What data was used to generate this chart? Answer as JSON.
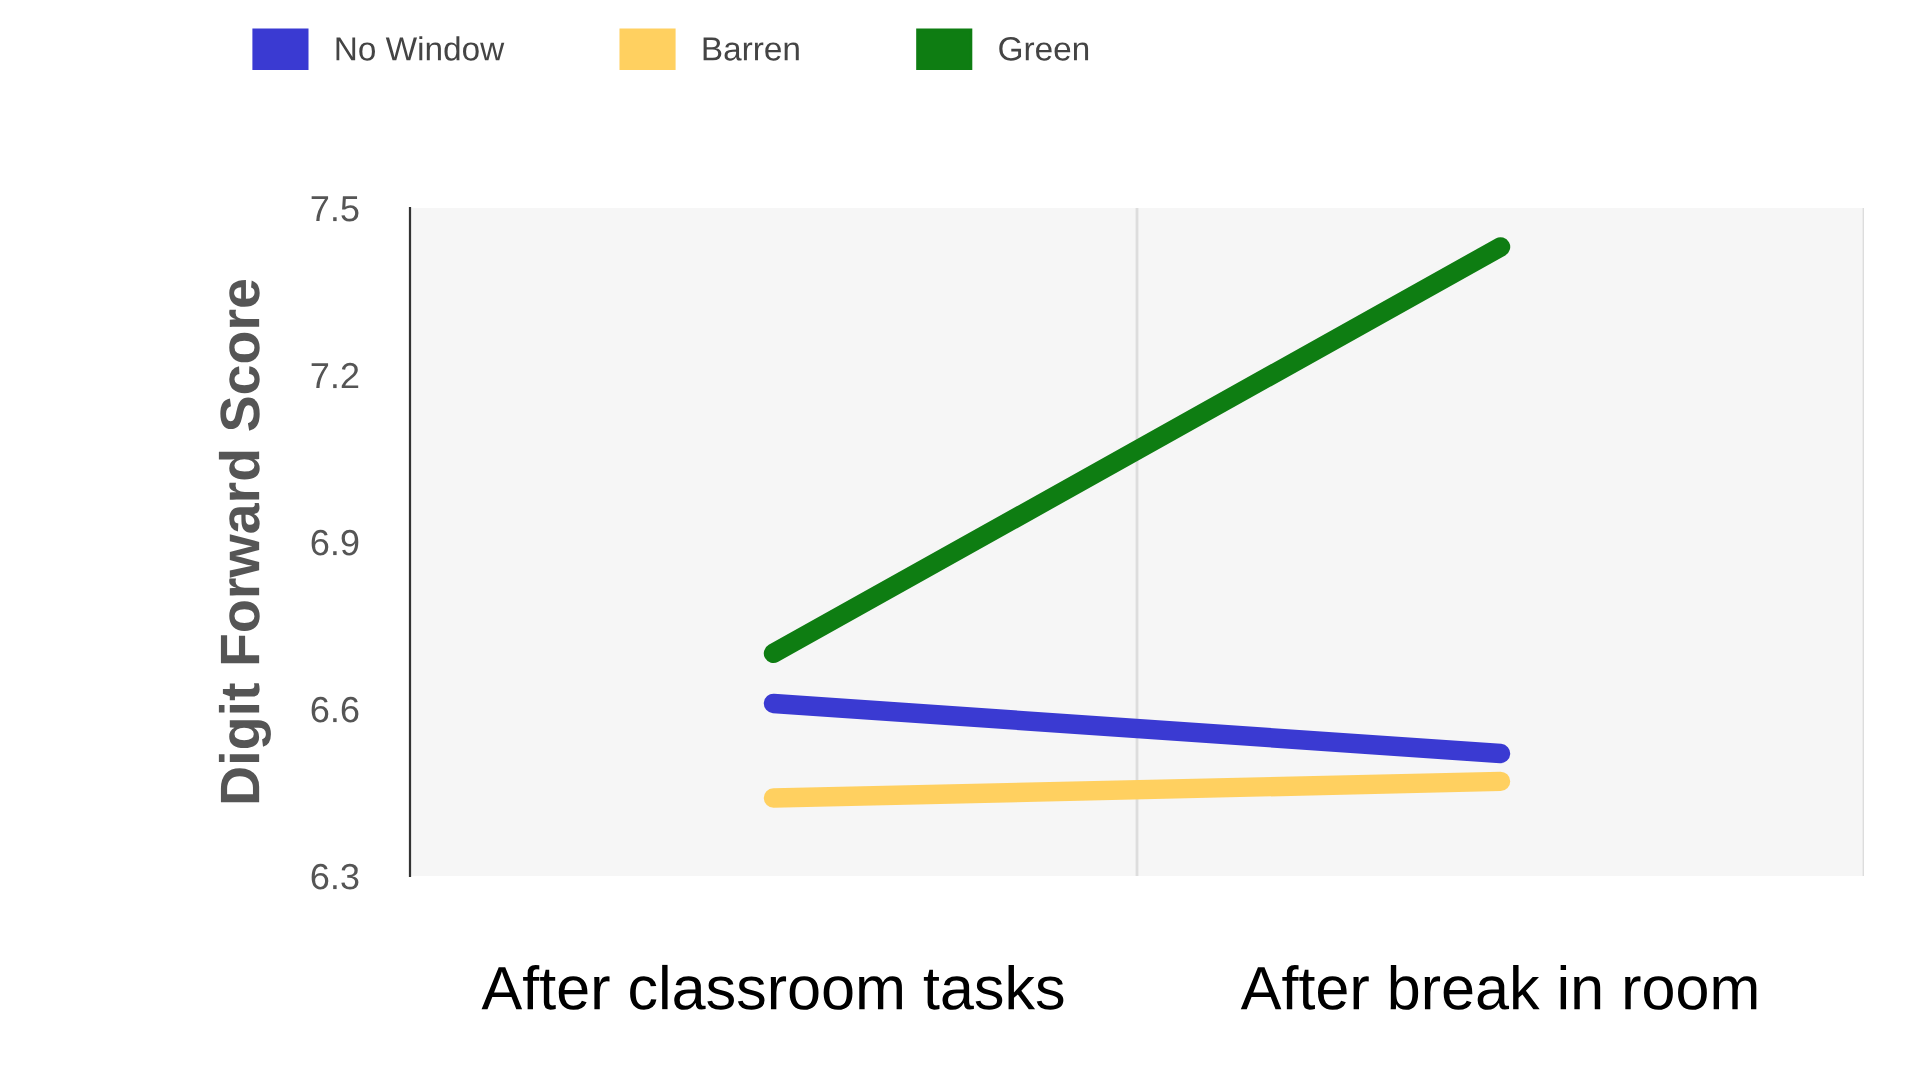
{
  "chart_data": {
    "type": "line",
    "ylabel": "Digit Forward Score",
    "categories": [
      "After classroom tasks",
      "After break in room"
    ],
    "series": [
      {
        "name": "No Window",
        "color": "#3a3ad2",
        "values": [
          6.61,
          6.52
        ]
      },
      {
        "name": "Barren",
        "color": "#ffd060",
        "values": [
          6.44,
          6.47
        ]
      },
      {
        "name": "Green",
        "color": "#0e7d12",
        "values": [
          6.7,
          7.43
        ]
      }
    ],
    "ylim": [
      6.3,
      7.5
    ],
    "yticks": [
      6.3,
      6.6,
      6.9,
      7.2,
      7.5
    ],
    "grid": "x",
    "legend": "top",
    "marker": "none",
    "line_style": "solid"
  }
}
